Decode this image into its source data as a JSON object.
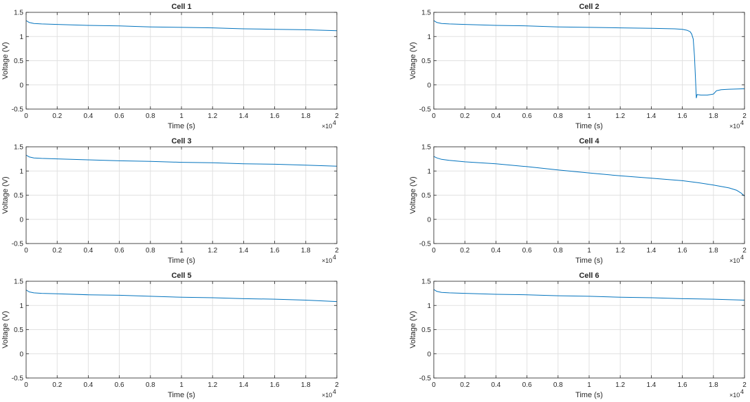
{
  "chart_data": [
    {
      "type": "line",
      "title": "Cell 1",
      "xlabel": "Time (s)",
      "ylabel": "Voltage (V)",
      "xlim": [
        0,
        20000
      ],
      "ylim": [
        -0.5,
        1.5
      ],
      "x_ticks": [
        "0",
        "0.2",
        "0.4",
        "0.6",
        "0.8",
        "1",
        "1.2",
        "1.4",
        "1.6",
        "1.8",
        "2"
      ],
      "y_ticks": [
        "-0.5",
        "0",
        "0.5",
        "1",
        "1.5"
      ],
      "x_multiplier": {
        "base": "×10",
        "exponent": "4"
      },
      "grid": true,
      "line_color": "#0072bd",
      "series": [
        {
          "x": [
            0,
            200,
            500,
            1000,
            2000,
            4000,
            6000,
            8000,
            10000,
            12000,
            14000,
            16000,
            18000,
            20000
          ],
          "y": [
            1.33,
            1.29,
            1.27,
            1.26,
            1.25,
            1.23,
            1.22,
            1.2,
            1.19,
            1.18,
            1.16,
            1.15,
            1.14,
            1.12
          ]
        }
      ]
    },
    {
      "type": "line",
      "title": "Cell 2",
      "xlabel": "Time (s)",
      "ylabel": "Voltage (V)",
      "xlim": [
        0,
        20000
      ],
      "ylim": [
        -0.5,
        1.5
      ],
      "x_ticks": [
        "0",
        "0.2",
        "0.4",
        "0.6",
        "0.8",
        "1",
        "1.2",
        "1.4",
        "1.6",
        "1.8",
        "2"
      ],
      "y_ticks": [
        "-0.5",
        "0",
        "0.5",
        "1",
        "1.5"
      ],
      "x_multiplier": {
        "base": "×10",
        "exponent": "4"
      },
      "grid": true,
      "line_color": "#0072bd",
      "series": [
        {
          "x": [
            0,
            200,
            500,
            1000,
            2000,
            4000,
            6000,
            8000,
            10000,
            12000,
            14000,
            15500,
            16000,
            16300,
            16500,
            16600,
            16700,
            16780,
            16850,
            16900,
            16950,
            17200,
            17600,
            18000,
            18200,
            18500,
            19000,
            20000
          ],
          "y": [
            1.33,
            1.29,
            1.27,
            1.26,
            1.25,
            1.23,
            1.22,
            1.2,
            1.19,
            1.18,
            1.17,
            1.16,
            1.15,
            1.13,
            1.1,
            1.05,
            0.95,
            0.6,
            0.1,
            -0.27,
            -0.2,
            -0.21,
            -0.21,
            -0.19,
            -0.12,
            -0.1,
            -0.09,
            -0.08
          ]
        }
      ]
    },
    {
      "type": "line",
      "title": "Cell 3",
      "xlabel": "Time (s)",
      "ylabel": "Voltage (V)",
      "xlim": [
        0,
        20000
      ],
      "ylim": [
        -0.5,
        1.5
      ],
      "x_ticks": [
        "0",
        "0.2",
        "0.4",
        "0.6",
        "0.8",
        "1",
        "1.2",
        "1.4",
        "1.6",
        "1.8",
        "2"
      ],
      "y_ticks": [
        "-0.5",
        "0",
        "0.5",
        "1",
        "1.5"
      ],
      "x_multiplier": {
        "base": "×10",
        "exponent": "4"
      },
      "grid": true,
      "line_color": "#0072bd",
      "series": [
        {
          "x": [
            0,
            200,
            500,
            1000,
            2000,
            4000,
            6000,
            8000,
            10000,
            12000,
            14000,
            16000,
            18000,
            20000
          ],
          "y": [
            1.33,
            1.29,
            1.27,
            1.26,
            1.25,
            1.23,
            1.21,
            1.2,
            1.18,
            1.17,
            1.15,
            1.14,
            1.12,
            1.1
          ]
        }
      ]
    },
    {
      "type": "line",
      "title": "Cell 4",
      "xlabel": "Time (s)",
      "ylabel": "Voltage (V)",
      "xlim": [
        0,
        20000
      ],
      "ylim": [
        -0.5,
        1.5
      ],
      "x_ticks": [
        "0",
        "0.2",
        "0.4",
        "0.6",
        "0.8",
        "1",
        "1.2",
        "1.4",
        "1.6",
        "1.8",
        "2"
      ],
      "y_ticks": [
        "-0.5",
        "0",
        "0.5",
        "1",
        "1.5"
      ],
      "x_multiplier": {
        "base": "×10",
        "exponent": "4"
      },
      "grid": true,
      "line_color": "#0072bd",
      "series": [
        {
          "x": [
            0,
            200,
            500,
            1000,
            2000,
            4000,
            6000,
            8000,
            10000,
            12000,
            14000,
            16000,
            17000,
            18000,
            19000,
            19500,
            19800,
            20000
          ],
          "y": [
            1.3,
            1.27,
            1.24,
            1.22,
            1.19,
            1.15,
            1.09,
            1.02,
            0.96,
            0.9,
            0.85,
            0.8,
            0.76,
            0.71,
            0.65,
            0.6,
            0.54,
            0.48
          ]
        }
      ]
    },
    {
      "type": "line",
      "title": "Cell 5",
      "xlabel": "Time (s)",
      "ylabel": "Voltage (V)",
      "xlim": [
        0,
        20000
      ],
      "ylim": [
        -0.5,
        1.5
      ],
      "x_ticks": [
        "0",
        "0.2",
        "0.4",
        "0.6",
        "0.8",
        "1",
        "1.2",
        "1.4",
        "1.6",
        "1.8",
        "2"
      ],
      "y_ticks": [
        "-0.5",
        "0",
        "0.5",
        "1",
        "1.5"
      ],
      "x_multiplier": {
        "base": "×10",
        "exponent": "4"
      },
      "grid": true,
      "line_color": "#0072bd",
      "series": [
        {
          "x": [
            0,
            200,
            500,
            1000,
            2000,
            4000,
            6000,
            8000,
            10000,
            12000,
            14000,
            16000,
            18000,
            20000
          ],
          "y": [
            1.32,
            1.28,
            1.26,
            1.25,
            1.24,
            1.22,
            1.21,
            1.19,
            1.17,
            1.16,
            1.14,
            1.13,
            1.11,
            1.08
          ]
        }
      ]
    },
    {
      "type": "line",
      "title": "Cell 6",
      "xlabel": "Time (s)",
      "ylabel": "Voltage (V)",
      "xlim": [
        0,
        20000
      ],
      "ylim": [
        -0.5,
        1.5
      ],
      "x_ticks": [
        "0",
        "0.2",
        "0.4",
        "0.6",
        "0.8",
        "1",
        "1.2",
        "1.4",
        "1.6",
        "1.8",
        "2"
      ],
      "y_ticks": [
        "-0.5",
        "0",
        "0.5",
        "1",
        "1.5"
      ],
      "x_multiplier": {
        "base": "×10",
        "exponent": "4"
      },
      "grid": true,
      "line_color": "#0072bd",
      "series": [
        {
          "x": [
            0,
            200,
            500,
            1000,
            2000,
            4000,
            6000,
            8000,
            10000,
            12000,
            14000,
            16000,
            18000,
            20000
          ],
          "y": [
            1.33,
            1.29,
            1.27,
            1.26,
            1.25,
            1.23,
            1.22,
            1.2,
            1.19,
            1.17,
            1.16,
            1.14,
            1.13,
            1.11
          ]
        }
      ]
    }
  ]
}
